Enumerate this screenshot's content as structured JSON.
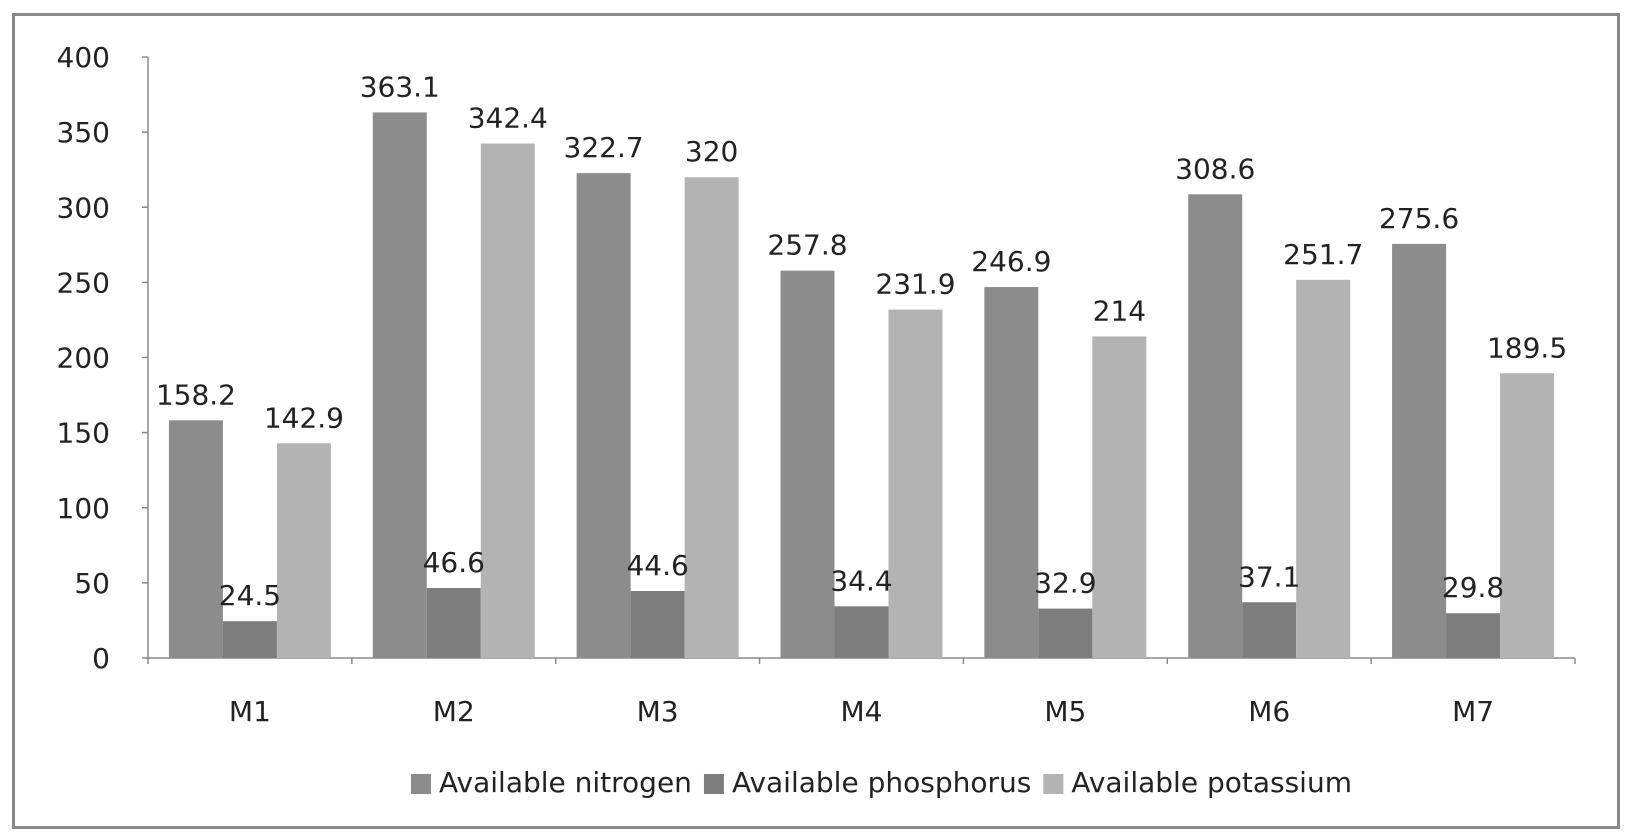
{
  "chart_data": {
    "type": "bar",
    "title": "",
    "xlabel": "",
    "ylabel": "",
    "categories": [
      "M1",
      "M2",
      "M3",
      "M4",
      "M5",
      "M6",
      "M7"
    ],
    "series": [
      {
        "name": "Available nitrogen",
        "values": [
          158.2,
          363.1,
          322.7,
          257.8,
          246.9,
          308.6,
          275.6
        ],
        "labels": [
          "158.2",
          "363.1",
          "322.7",
          "257.8",
          "246.9",
          "308.6",
          "275.6"
        ],
        "color": "#8c8c8c"
      },
      {
        "name": "Available phosphorus",
        "values": [
          24.5,
          46.6,
          44.6,
          34.4,
          32.9,
          37.1,
          29.8
        ],
        "labels": [
          "24.5",
          "46.6",
          "44.6",
          "34.4",
          "32.9",
          "37.1",
          "29.8"
        ],
        "color": "#7d7d7d"
      },
      {
        "name": "Available potassium",
        "values": [
          142.9,
          342.4,
          320,
          231.9,
          214,
          251.7,
          189.5
        ],
        "labels": [
          "142.9",
          "342.4",
          "320",
          "231.9",
          "214",
          "251.7",
          "189.5"
        ],
        "color": "#b3b3b3"
      }
    ],
    "ylim": [
      0,
      400
    ],
    "yticks": [
      0,
      50,
      100,
      150,
      200,
      250,
      300,
      350,
      400
    ],
    "ytick_labels": [
      "0",
      "50",
      "100",
      "150",
      "200",
      "250",
      "300",
      "350",
      "400"
    ],
    "grid": false,
    "legend_position": "bottom"
  }
}
